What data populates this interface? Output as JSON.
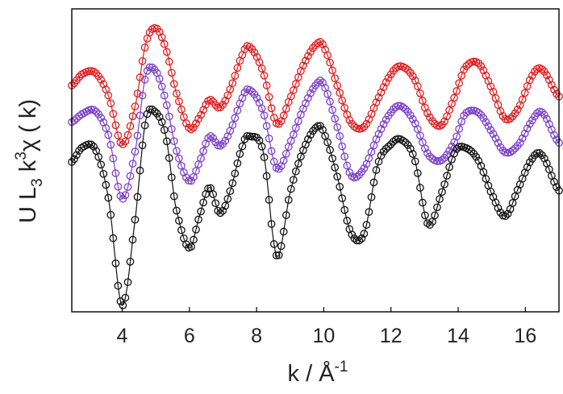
{
  "chart_data": {
    "type": "line",
    "title": "",
    "xlabel": {
      "base": "k /  Å",
      "sup": "-1"
    },
    "ylabel": {
      "p1": "U L",
      "sub": "3",
      "p2": " k",
      "sup": "3",
      "p3": "χ ( k)"
    },
    "xlim": [
      2.5,
      17.0
    ],
    "ylim": [
      -11.0,
      8.0
    ],
    "xticks": [
      "4",
      "6",
      "8",
      "10",
      "12",
      "14",
      "16"
    ],
    "xtick_values": [
      4,
      6,
      8,
      10,
      12,
      14,
      16
    ],
    "yticks": [],
    "grid": false,
    "legend": "none",
    "series": [
      {
        "color": "#e31a1c",
        "style": "open circles with fitted line",
        "x": [
          2.5,
          2.8,
          3.2,
          3.6,
          4.0,
          4.4,
          4.7,
          5.0,
          5.3,
          5.6,
          6.0,
          6.3,
          6.6,
          6.9,
          7.2,
          7.6,
          7.8,
          8.2,
          8.6,
          9.0,
          9.4,
          9.8,
          10.0,
          10.4,
          10.8,
          11.2,
          11.6,
          12.0,
          12.3,
          12.7,
          13.1,
          13.5,
          13.9,
          14.2,
          14.6,
          15.0,
          15.4,
          15.8,
          16.2,
          16.5,
          17.0
        ],
        "y": [
          3.2,
          3.9,
          4.0,
          2.5,
          -0.5,
          2.0,
          5.8,
          6.8,
          5.5,
          2.8,
          0.5,
          1.2,
          2.3,
          1.8,
          2.9,
          5.2,
          5.6,
          4.0,
          0.8,
          2.4,
          4.5,
          5.8,
          5.6,
          3.2,
          0.9,
          0.6,
          2.3,
          3.9,
          4.4,
          3.6,
          1.4,
          0.7,
          2.5,
          4.3,
          4.6,
          3.0,
          1.1,
          1.8,
          3.8,
          4.2,
          2.5
        ]
      },
      {
        "color": "#7b3fc9",
        "style": "open circles with fitted line",
        "x": [
          2.5,
          2.8,
          3.2,
          3.6,
          4.0,
          4.4,
          4.7,
          5.0,
          5.3,
          5.6,
          6.0,
          6.3,
          6.6,
          6.9,
          7.2,
          7.6,
          7.8,
          8.2,
          8.6,
          9.0,
          9.4,
          9.8,
          10.0,
          10.4,
          10.8,
          11.2,
          11.6,
          12.0,
          12.3,
          12.7,
          13.1,
          13.5,
          13.9,
          14.2,
          14.6,
          15.0,
          15.4,
          15.8,
          16.2,
          16.5,
          17.0
        ],
        "y": [
          0.9,
          1.4,
          1.6,
          0.0,
          -3.9,
          -0.8,
          3.8,
          4.1,
          2.2,
          -0.8,
          -2.8,
          -1.6,
          0.0,
          -0.6,
          0.3,
          2.5,
          2.9,
          1.5,
          -2.0,
          -0.4,
          1.8,
          3.3,
          3.2,
          0.6,
          -2.4,
          -2.0,
          0.0,
          1.5,
          1.9,
          0.9,
          -1.1,
          -1.5,
          -0.3,
          1.4,
          1.5,
          0.3,
          -1.0,
          -0.5,
          1.0,
          1.5,
          -0.4
        ]
      },
      {
        "color": "#111111",
        "style": "open circles with fitted line",
        "x": [
          2.5,
          2.8,
          3.2,
          3.6,
          4.0,
          4.4,
          4.7,
          5.0,
          5.3,
          5.6,
          6.0,
          6.3,
          6.6,
          6.9,
          7.2,
          7.6,
          7.8,
          8.2,
          8.6,
          9.0,
          9.4,
          9.8,
          10.0,
          10.4,
          10.8,
          11.2,
          11.6,
          12.0,
          12.3,
          12.7,
          13.1,
          13.5,
          13.9,
          14.2,
          14.6,
          15.0,
          15.4,
          15.8,
          16.2,
          16.5,
          17.0
        ],
        "y": [
          -1.6,
          -0.7,
          -0.8,
          -4.0,
          -10.6,
          -5.0,
          1.0,
          1.5,
          0.0,
          -4.5,
          -7.0,
          -5.0,
          -3.2,
          -4.8,
          -3.5,
          -0.5,
          0.0,
          -1.0,
          -7.5,
          -3.5,
          -0.8,
          0.6,
          0.2,
          -2.5,
          -6.0,
          -6.1,
          -1.8,
          -0.5,
          -0.2,
          -1.4,
          -5.5,
          -3.6,
          -1.0,
          -0.7,
          -1.5,
          -3.6,
          -5.0,
          -3.2,
          -1.4,
          -1.2,
          -3.4
        ]
      }
    ]
  }
}
